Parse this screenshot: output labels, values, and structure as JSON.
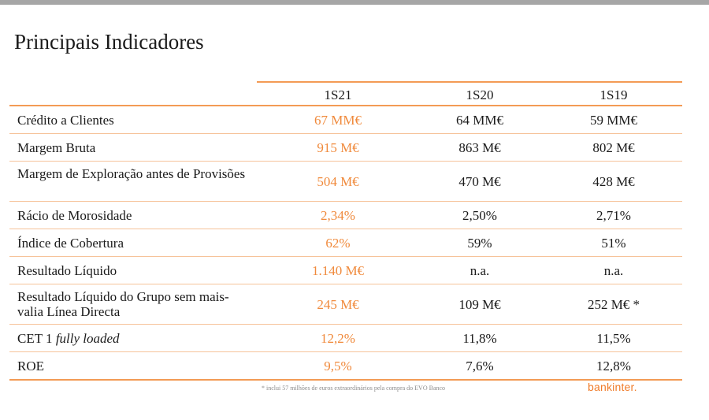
{
  "title": "Principais Indicadores",
  "columns": [
    "1S21",
    "1S20",
    "1S19"
  ],
  "rows": [
    {
      "label": "Crédito a Clientes",
      "label_em": "",
      "v1": "67 MM€",
      "v2": "64 MM€",
      "v3": "59 MM€"
    },
    {
      "label": "Margem Bruta",
      "label_em": "",
      "v1": "915 M€",
      "v2": "863 M€",
      "v3": "802 M€"
    },
    {
      "label": "Margem de Exploração antes de Provisões",
      "label_em": "",
      "v1": "504 M€",
      "v2": "470 M€",
      "v3": "428 M€"
    },
    {
      "label": "Rácio de Morosidade",
      "label_em": "",
      "v1": "2,34%",
      "v2": "2,50%",
      "v3": "2,71%"
    },
    {
      "label": "Índice de Cobertura",
      "label_em": "",
      "v1": "62%",
      "v2": "59%",
      "v3": "51%"
    },
    {
      "label": "Resultado Líquido",
      "label_em": "",
      "v1": "1.140 M€",
      "v2": "n.a.",
      "v3": "n.a."
    },
    {
      "label": "Resultado Líquido do Grupo sem mais-valia Línea Directa",
      "label_em": "",
      "v1": "245 M€",
      "v2": "109 M€",
      "v3": "252 M€ *"
    },
    {
      "label": "CET 1 ",
      "label_em": "fully loaded",
      "v1": "12,2%",
      "v2": "11,8%",
      "v3": "11,5%"
    },
    {
      "label": "ROE",
      "label_em": "",
      "v1": "9,5%",
      "v2": "7,6%",
      "v3": "12,8%"
    }
  ],
  "footnote": "* inclui 57 milhões de euros extraordinários pela compra do EVO Banco",
  "logo_text": "bankinter.",
  "colors": {
    "accent": "#f08a3c",
    "rule": "#f39b55",
    "text": "#1a1a1a"
  }
}
